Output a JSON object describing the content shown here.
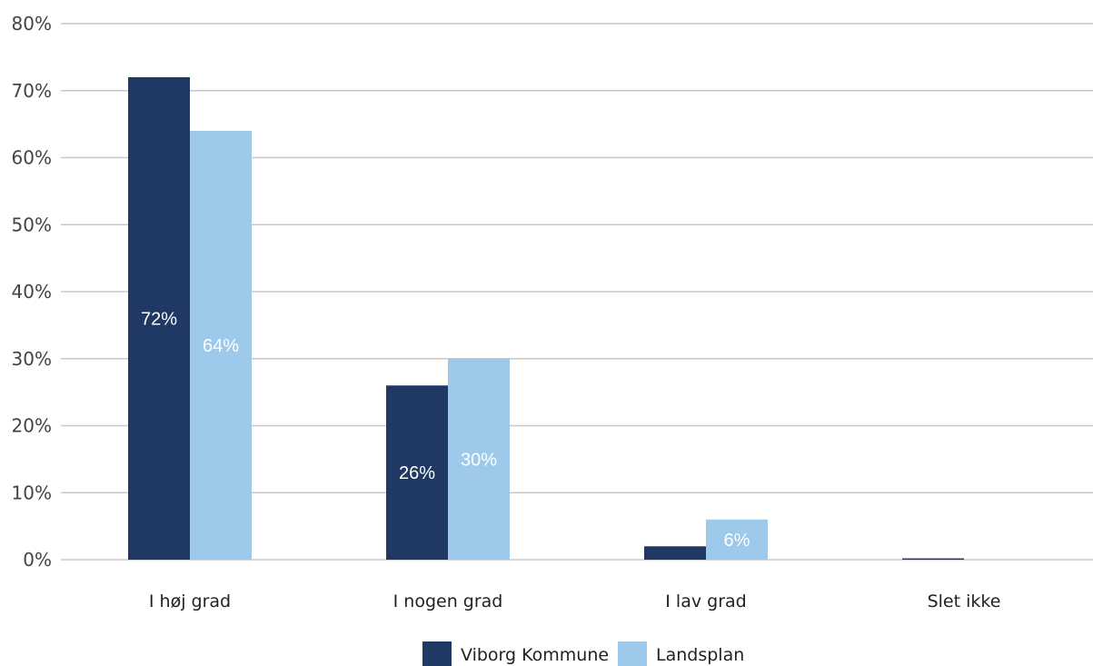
{
  "chart_data": {
    "type": "bar",
    "categories": [
      "I høj grad",
      "I nogen grad",
      "I lav grad",
      "Slet ikke"
    ],
    "series": [
      {
        "name": "Viborg Kommune",
        "values": [
          72,
          26,
          2,
          0
        ],
        "labels": [
          "72%",
          "26%",
          "",
          ""
        ],
        "color": "#1f3864"
      },
      {
        "name": "Landsplan",
        "values": [
          64,
          30,
          6,
          0
        ],
        "labels": [
          "64%",
          "30%",
          "6%",
          ""
        ],
        "color": "#9dc9ea"
      }
    ],
    "yticks": [
      "0%",
      "10%",
      "20%",
      "30%",
      "40%",
      "50%",
      "60%",
      "70%",
      "80%"
    ],
    "ylim": [
      0,
      80
    ],
    "grid": true,
    "legend_position": "bottom"
  }
}
